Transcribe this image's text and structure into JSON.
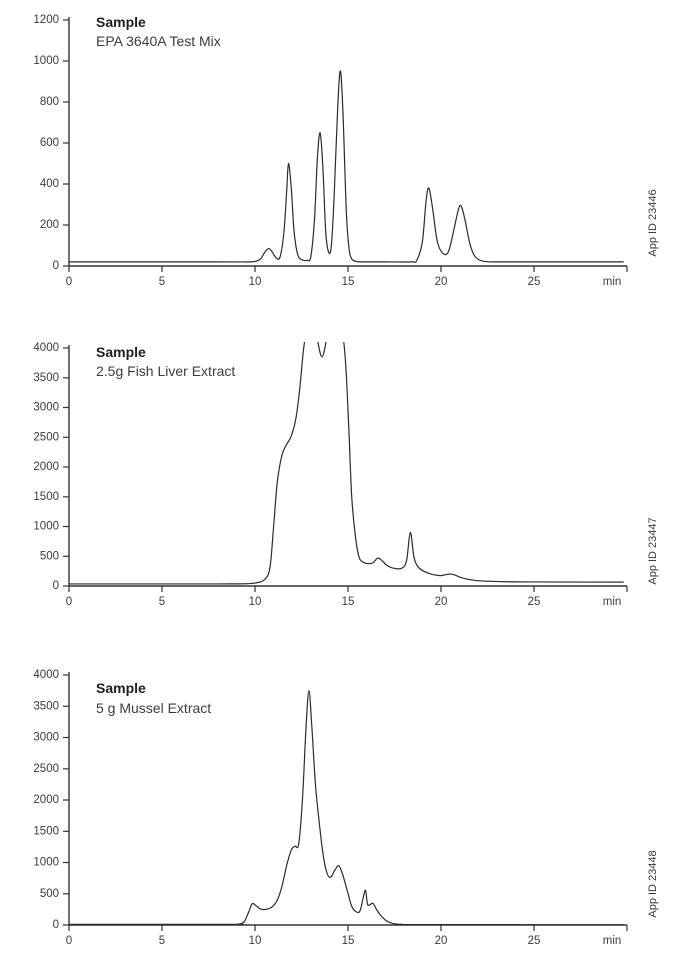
{
  "chart_data": [
    {
      "type": "line",
      "title": "Sample",
      "subtitle": "EPA 3640A Test Mix",
      "app_id": "App ID 23446",
      "x_unit_label": "min",
      "xlim": [
        0,
        30
      ],
      "x_ticks": [
        0,
        5,
        10,
        15,
        20,
        25
      ],
      "ylim": [
        0,
        1200
      ],
      "y_ticks": [
        0,
        200,
        400,
        600,
        800,
        1000,
        1200
      ],
      "grid": false,
      "legend": "none",
      "line_color": "#2b2b2b",
      "axis_color": "#333333",
      "label_color": "#3c3c3c",
      "points": [
        [
          0,
          20
        ],
        [
          8,
          20
        ],
        [
          9.5,
          20
        ],
        [
          10.0,
          22
        ],
        [
          10.3,
          35
        ],
        [
          10.55,
          70
        ],
        [
          10.75,
          85
        ],
        [
          10.95,
          65
        ],
        [
          11.15,
          38
        ],
        [
          11.35,
          45
        ],
        [
          11.55,
          160
        ],
        [
          11.7,
          360
        ],
        [
          11.8,
          500
        ],
        [
          11.95,
          380
        ],
        [
          12.1,
          170
        ],
        [
          12.3,
          55
        ],
        [
          12.55,
          30
        ],
        [
          12.8,
          28
        ],
        [
          13.0,
          45
        ],
        [
          13.2,
          230
        ],
        [
          13.35,
          520
        ],
        [
          13.5,
          650
        ],
        [
          13.65,
          480
        ],
        [
          13.8,
          170
        ],
        [
          13.95,
          70
        ],
        [
          14.1,
          95
        ],
        [
          14.25,
          330
        ],
        [
          14.45,
          780
        ],
        [
          14.6,
          950
        ],
        [
          14.75,
          700
        ],
        [
          14.9,
          280
        ],
        [
          15.05,
          90
        ],
        [
          15.2,
          35
        ],
        [
          15.45,
          22
        ],
        [
          15.8,
          20
        ],
        [
          17,
          20
        ],
        [
          18.4,
          20
        ],
        [
          18.7,
          28
        ],
        [
          19.0,
          120
        ],
        [
          19.2,
          320
        ],
        [
          19.35,
          380
        ],
        [
          19.55,
          280
        ],
        [
          19.8,
          120
        ],
        [
          20.1,
          62
        ],
        [
          20.4,
          70
        ],
        [
          20.7,
          180
        ],
        [
          20.95,
          280
        ],
        [
          21.1,
          290
        ],
        [
          21.3,
          220
        ],
        [
          21.55,
          110
        ],
        [
          21.8,
          50
        ],
        [
          22.1,
          28
        ],
        [
          22.5,
          21
        ],
        [
          23.5,
          20
        ],
        [
          29.8,
          20
        ]
      ]
    },
    {
      "type": "line",
      "title": "Sample",
      "subtitle": "2.5g Fish Liver Extract",
      "app_id": "App ID 23447",
      "x_unit_label": "min",
      "xlim": [
        0,
        30
      ],
      "x_ticks": [
        0,
        5,
        10,
        15,
        20,
        25
      ],
      "ylim": [
        0,
        4000
      ],
      "y_ticks": [
        0,
        500,
        1000,
        1500,
        2000,
        2500,
        3000,
        3500,
        4000
      ],
      "grid": false,
      "legend": "none",
      "line_color": "#2b2b2b",
      "axis_color": "#333333",
      "label_color": "#3c3c3c",
      "note": "main peak exceeds y-scale (clipped above 4000) with dip to ~3850 at 13.6 min",
      "points": [
        [
          0,
          35
        ],
        [
          8,
          35
        ],
        [
          9.5,
          38
        ],
        [
          10.1,
          55
        ],
        [
          10.5,
          105
        ],
        [
          10.8,
          300
        ],
        [
          11.0,
          1000
        ],
        [
          11.2,
          1750
        ],
        [
          11.45,
          2200
        ],
        [
          11.7,
          2380
        ],
        [
          11.95,
          2520
        ],
        [
          12.2,
          2820
        ],
        [
          12.4,
          3300
        ],
        [
          12.6,
          3950
        ],
        [
          12.75,
          4250
        ],
        [
          13.0,
          4420
        ],
        [
          13.25,
          4300
        ],
        [
          13.6,
          3850
        ],
        [
          13.95,
          4300
        ],
        [
          14.2,
          4430
        ],
        [
          14.5,
          4430
        ],
        [
          14.75,
          4150
        ],
        [
          14.9,
          3600
        ],
        [
          15.05,
          2600
        ],
        [
          15.2,
          1500
        ],
        [
          15.4,
          830
        ],
        [
          15.6,
          480
        ],
        [
          15.85,
          395
        ],
        [
          16.1,
          375
        ],
        [
          16.35,
          390
        ],
        [
          16.6,
          470
        ],
        [
          16.85,
          420
        ],
        [
          17.1,
          345
        ],
        [
          17.5,
          295
        ],
        [
          17.9,
          300
        ],
        [
          18.15,
          430
        ],
        [
          18.35,
          900
        ],
        [
          18.55,
          480
        ],
        [
          18.8,
          310
        ],
        [
          19.2,
          230
        ],
        [
          19.6,
          190
        ],
        [
          20.0,
          175
        ],
        [
          20.4,
          200
        ],
        [
          20.7,
          190
        ],
        [
          21.1,
          140
        ],
        [
          21.6,
          105
        ],
        [
          22.2,
          85
        ],
        [
          23.5,
          72
        ],
        [
          25,
          68
        ],
        [
          29.8,
          65
        ]
      ]
    },
    {
      "type": "line",
      "title": "Sample",
      "subtitle": "5 g Mussel Extract",
      "app_id": "App ID 23448",
      "x_unit_label": "min",
      "xlim": [
        0,
        30
      ],
      "x_ticks": [
        0,
        5,
        10,
        15,
        20,
        25
      ],
      "ylim": [
        0,
        4000
      ],
      "y_ticks": [
        0,
        500,
        1000,
        1500,
        2000,
        2500,
        3000,
        3500,
        4000
      ],
      "grid": false,
      "legend": "none",
      "line_color": "#2b2b2b",
      "axis_color": "#333333",
      "label_color": "#3c3c3c",
      "points": [
        [
          0,
          10
        ],
        [
          8.5,
          10
        ],
        [
          9.1,
          14
        ],
        [
          9.4,
          45
        ],
        [
          9.65,
          200
        ],
        [
          9.85,
          340
        ],
        [
          10.05,
          310
        ],
        [
          10.3,
          255
        ],
        [
          10.6,
          250
        ],
        [
          10.9,
          285
        ],
        [
          11.2,
          400
        ],
        [
          11.45,
          620
        ],
        [
          11.7,
          950
        ],
        [
          11.95,
          1200
        ],
        [
          12.15,
          1260
        ],
        [
          12.35,
          1300
        ],
        [
          12.55,
          2000
        ],
        [
          12.75,
          3200
        ],
        [
          12.9,
          3750
        ],
        [
          13.05,
          3200
        ],
        [
          13.25,
          2250
        ],
        [
          13.45,
          1650
        ],
        [
          13.65,
          1150
        ],
        [
          13.85,
          850
        ],
        [
          14.05,
          760
        ],
        [
          14.3,
          880
        ],
        [
          14.5,
          950
        ],
        [
          14.7,
          820
        ],
        [
          14.95,
          560
        ],
        [
          15.2,
          300
        ],
        [
          15.45,
          210
        ],
        [
          15.65,
          230
        ],
        [
          15.85,
          480
        ],
        [
          15.95,
          550
        ],
        [
          16.05,
          330
        ],
        [
          16.2,
          330
        ],
        [
          16.35,
          345
        ],
        [
          16.55,
          240
        ],
        [
          16.8,
          140
        ],
        [
          17.1,
          60
        ],
        [
          17.5,
          20
        ],
        [
          18.0,
          8
        ],
        [
          19,
          6
        ],
        [
          29.8,
          5
        ]
      ]
    }
  ]
}
